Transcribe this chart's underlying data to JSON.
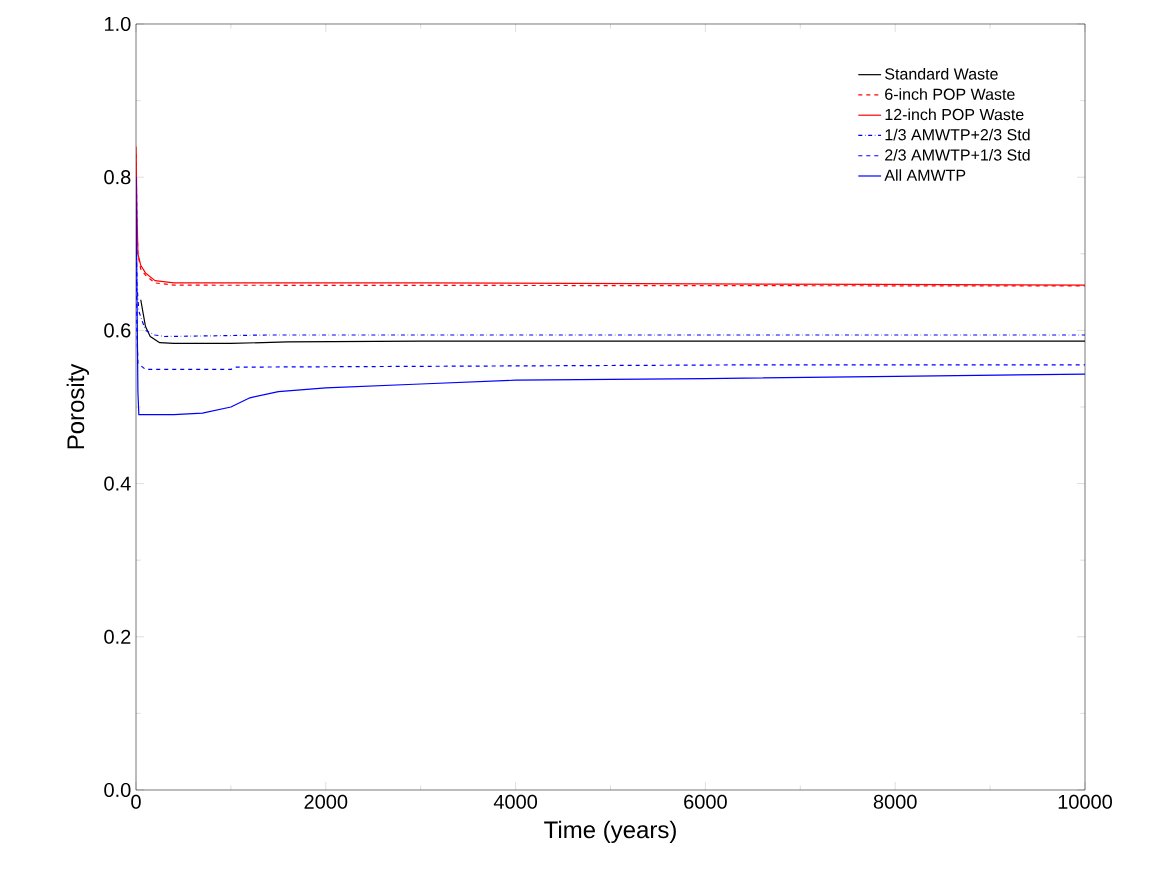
{
  "chart_data": {
    "type": "line",
    "xlabel": "Time (years)",
    "ylabel": "Porosity",
    "xlim": [
      0,
      10000
    ],
    "ylim": [
      0,
      1.0
    ],
    "xticks": [
      0,
      2000,
      4000,
      6000,
      8000,
      10000
    ],
    "yticks": [
      {
        "value": 0,
        "label": "0.0"
      },
      0.2,
      0.4,
      0.6,
      0.8,
      {
        "value": 1,
        "label": "1.0"
      }
    ],
    "grid": false,
    "legend": "top right",
    "marker": "none",
    "series": [
      {
        "name": "Standard Waste",
        "color": "#000000",
        "line_style": "solid",
        "x": [
          50,
          100,
          150,
          250,
          400,
          1000,
          1600,
          3000,
          10000
        ],
        "values": [
          0.64,
          0.605,
          0.592,
          0.584,
          0.583,
          0.583,
          0.585,
          0.586,
          0.586
        ]
      },
      {
        "name": "6-inch POP Waste",
        "color": "#ff0000",
        "line_style": "dashed",
        "x": [
          0,
          10,
          20,
          50,
          100,
          200,
          400,
          10000
        ],
        "values": [
          0.83,
          0.74,
          0.7,
          0.68,
          0.672,
          0.662,
          0.659,
          0.658
        ]
      },
      {
        "name": "12-inch POP Waste",
        "color": "#ff0000",
        "line_style": "solid",
        "x": [
          0,
          10,
          20,
          50,
          100,
          200,
          400,
          3000,
          7800,
          10000
        ],
        "values": [
          0.84,
          0.76,
          0.7,
          0.685,
          0.675,
          0.665,
          0.662,
          0.662,
          0.66,
          0.659
        ]
      },
      {
        "name": "1/3 AMWTP+2/3 Std",
        "color": "#0000ff",
        "line_style": "dashdot",
        "x": [
          0,
          10,
          30,
          100,
          200,
          300,
          1400,
          10000
        ],
        "values": [
          0.74,
          0.66,
          0.625,
          0.6,
          0.594,
          0.592,
          0.594,
          0.594
        ]
      },
      {
        "name": "2/3 AMWTP+1/3 Std",
        "color": "#0000ff",
        "line_style": "dashed",
        "x": [
          0,
          10,
          20,
          100,
          1000,
          1050,
          6500,
          10000
        ],
        "values": [
          0.76,
          0.6,
          0.557,
          0.549,
          0.549,
          0.552,
          0.555,
          0.555
        ]
      },
      {
        "name": "All AMWTP",
        "color": "#0000ff",
        "line_style": "solid",
        "x": [
          0,
          10,
          20,
          30,
          400,
          700,
          1000,
          1200,
          1500,
          2000,
          3000,
          4000,
          6000,
          8000,
          10000
        ],
        "values": [
          0.8,
          0.65,
          0.52,
          0.49,
          0.49,
          0.492,
          0.5,
          0.512,
          0.52,
          0.525,
          0.53,
          0.535,
          0.537,
          0.54,
          0.543
        ]
      }
    ]
  }
}
